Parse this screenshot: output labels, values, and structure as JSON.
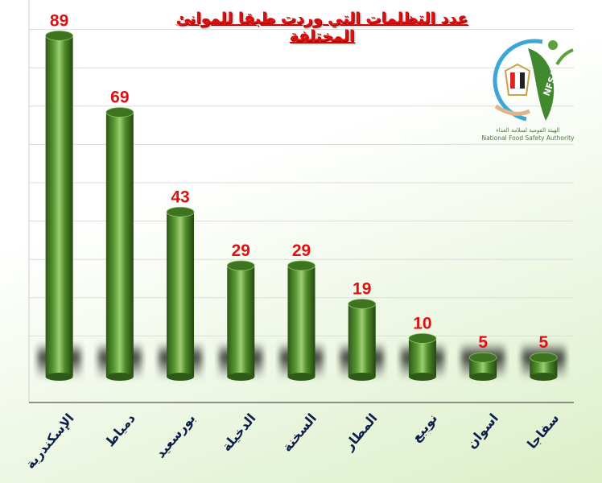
{
  "chart_data": {
    "type": "bar",
    "title": "عدد التظلمات التي وردت طبقا للموانئ المختلفة",
    "categories": [
      "الإسكندرية",
      "دمياط",
      "بورسعيد",
      "الدخيلة",
      "السخنة",
      "المطار",
      "نويبع",
      "اسوان",
      "سفاجا"
    ],
    "values": [
      89,
      69,
      43,
      29,
      29,
      19,
      10,
      5,
      5
    ],
    "ylim": [
      0,
      90
    ],
    "grid": true,
    "bar_style": "3d-cylinder",
    "colors": {
      "bar": "#4a8a2a",
      "bar_dark": "#2d5a16",
      "bar_light": "#8cc466",
      "label": "#e01010",
      "category": "#0d1f4a"
    }
  },
  "logo": {
    "abbr": "NFSA",
    "name_ar": "الهيئة القومية لسلامة الغذاء",
    "name_en": "National Food Safety Authority"
  }
}
